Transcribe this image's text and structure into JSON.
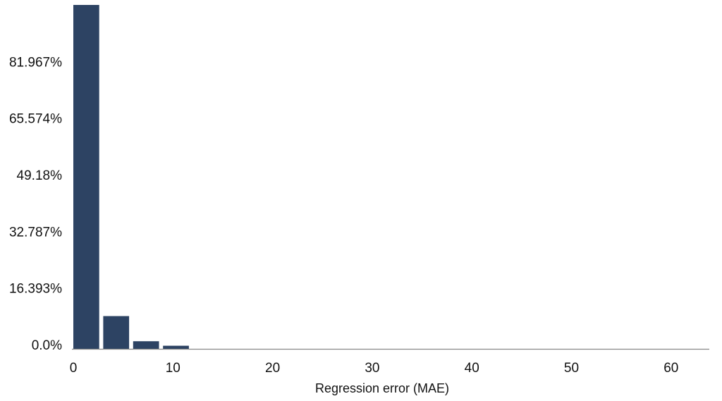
{
  "chart_data": {
    "type": "bar",
    "title": "",
    "xlabel": "Regression error (MAE)",
    "ylabel": "",
    "x_ticks": [
      "0",
      "10",
      "20",
      "30",
      "40",
      "50",
      "60"
    ],
    "x_tick_values": [
      0,
      10,
      20,
      30,
      40,
      50,
      60
    ],
    "y_ticks": [
      "0.0%",
      "16.393%",
      "32.787%",
      "49.18%",
      "65.574%",
      "81.967%"
    ],
    "y_tick_values": [
      0.0,
      16.393,
      32.787,
      49.18,
      65.574,
      81.967
    ],
    "xlim": [
      0,
      64
    ],
    "ylim": [
      0,
      99.6
    ],
    "bins": [
      {
        "x_start": 0,
        "x_end": 2.6,
        "value": 99.6
      },
      {
        "x_start": 3.0,
        "x_end": 5.6,
        "value": 9.5
      },
      {
        "x_start": 6.0,
        "x_end": 8.6,
        "value": 2.2
      },
      {
        "x_start": 9.0,
        "x_end": 11.6,
        "value": 0.9
      }
    ],
    "grid": false,
    "bar_color": "#2d4363",
    "axis_color": "#888888"
  }
}
